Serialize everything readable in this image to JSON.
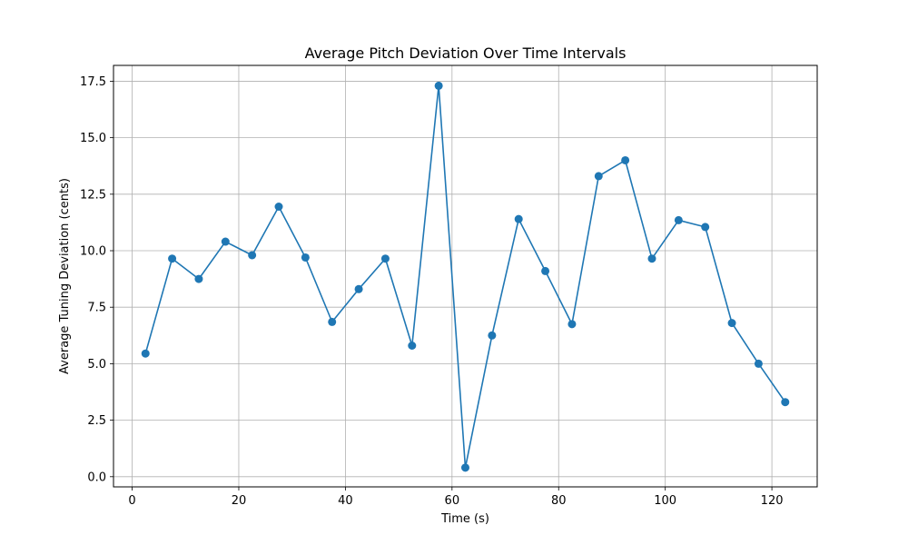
{
  "chart_data": {
    "type": "line",
    "title": "Average Pitch Deviation Over Time Intervals",
    "xlabel": "Time (s)",
    "ylabel": "Average Tuning Deviation (cents)",
    "xlim": [
      -3.5,
      128.5
    ],
    "ylim": [
      -0.45,
      18.2
    ],
    "xticks": [
      0,
      20,
      40,
      60,
      80,
      100,
      120
    ],
    "yticks": [
      0.0,
      2.5,
      5.0,
      7.5,
      10.0,
      12.5,
      15.0,
      17.5
    ],
    "ytick_labels": [
      "0.0",
      "2.5",
      "5.0",
      "7.5",
      "10.0",
      "12.5",
      "15.0",
      "17.5"
    ],
    "grid": true,
    "marker": "circle",
    "series": [
      {
        "color": "#1f77b4",
        "x": [
          2.5,
          7.5,
          12.5,
          17.5,
          22.5,
          27.5,
          32.5,
          37.5,
          42.5,
          47.5,
          52.5,
          57.5,
          62.5,
          67.5,
          72.5,
          77.5,
          82.5,
          87.5,
          92.5,
          97.5,
          102.5,
          107.5,
          112.5,
          117.5,
          122.5
        ],
        "y": [
          5.45,
          9.65,
          8.75,
          10.4,
          9.8,
          11.95,
          9.7,
          6.85,
          8.3,
          9.65,
          5.8,
          17.3,
          0.4,
          6.25,
          11.4,
          9.1,
          6.75,
          13.3,
          14.0,
          9.65,
          11.35,
          11.05,
          6.8,
          5.0,
          3.3
        ]
      }
    ]
  }
}
